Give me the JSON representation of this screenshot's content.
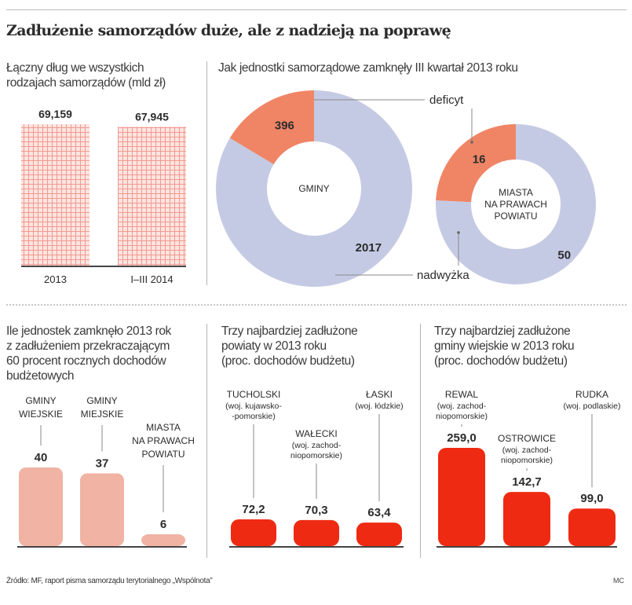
{
  "title": "Zadłużenie samorządów duże, ale z nadzieją na poprawę",
  "footer": {
    "source": "Źródło: MF, raport pisma samorządu terytorialnego „Wspólnota”",
    "author": "MC"
  },
  "colors": {
    "deficit": "#f08566",
    "surplus": "#c5cae4",
    "pink_bar": "#f0b3a4",
    "red_bar": "#ee2a12",
    "grid_bar": "#f3a8a0",
    "text_dark": "#2b2b2b"
  },
  "chart_data": [
    {
      "type": "bar",
      "title": "Łączny dług we wszystkich rodzajach samorządów (mld zł)",
      "title_lines": [
        "Łączny dług we wszystkich",
        "rodzajach samorządów (mld zł)"
      ],
      "categories": [
        "2013",
        "I–III 2014"
      ],
      "values": [
        69.159,
        67.945
      ],
      "value_labels": [
        "69,159",
        "67,945"
      ],
      "xlabel": "",
      "ylabel": "mld zł",
      "ylim": [
        0,
        70
      ]
    },
    {
      "type": "pie",
      "title": "Jak jednostki samorządowe zamknęły III kwartał 2013 roku",
      "legend_labels": {
        "deficit": "deficyt",
        "surplus": "nadwyżka"
      },
      "donuts": [
        {
          "center_label": [
            "GMINY"
          ],
          "slices": [
            {
              "name": "deficyt",
              "value": 396
            },
            {
              "name": "nadwyżka",
              "value": 2017
            }
          ]
        },
        {
          "center_label": [
            "MIASTA",
            "NA PRAWACH",
            "POWIATU"
          ],
          "slices": [
            {
              "name": "deficyt",
              "value": 16
            },
            {
              "name": "nadwyżka",
              "value": 50
            }
          ]
        }
      ]
    },
    {
      "type": "bar",
      "title": "Ile jednostek zamknęło 2013 rok z zadłużeniem przekraczającym 60 procent rocznych dochodów budżetowych",
      "title_lines": [
        "Ile jednostek zamknęło 2013 rok",
        "z zadłużeniem przekraczającym",
        "60 procent rocznych dochodów",
        "budżetowych"
      ],
      "categories": [
        [
          "GMINY",
          "WIEJSKIE"
        ],
        [
          "GMINY",
          "MIEJSKIE"
        ],
        [
          "MIASTA",
          "NA PRAWACH",
          "POWIATU"
        ]
      ],
      "values": [
        40,
        37,
        6
      ],
      "value_labels": [
        "40",
        "37",
        "6"
      ],
      "ylim": [
        0,
        40
      ]
    },
    {
      "type": "bar",
      "title": "Trzy najbardziej zadłużone powiaty w 2013 roku (proc. dochodów budżetu)",
      "title_lines": [
        "Trzy najbardziej zadłużone",
        "powiaty w 2013 roku",
        "(proc. dochodów budżetu)"
      ],
      "categories": [
        {
          "name": "TUCHOLSKI",
          "region": [
            "(woj. kujawsko-",
            "-pomorskie)"
          ]
        },
        {
          "name": "WAŁECKI",
          "region": [
            "(woj. zachod-",
            "niopomorskie)"
          ]
        },
        {
          "name": "ŁASKI",
          "region": [
            "(woj. łódzkie)"
          ]
        }
      ],
      "values": [
        72.2,
        70.3,
        63.4
      ],
      "value_labels": [
        "72,2",
        "70,3",
        "63,4"
      ],
      "ylabel": "proc. dochodów budżetu"
    },
    {
      "type": "bar",
      "title": "Trzy najbardziej zadłużone gminy wiejskie w 2013 roku (proc. dochodów budżetu)",
      "title_lines": [
        "Trzy najbardziej zadłużone",
        "gminy wiejskie w 2013 roku",
        "(proc. dochodów budżetu)"
      ],
      "categories": [
        {
          "name": "REWAL",
          "region": [
            "(woj. zachod-",
            "niopomorskie)"
          ]
        },
        {
          "name": "OSTROWICE",
          "region": [
            "(woj. zachod-",
            "niopomorskie)"
          ]
        },
        {
          "name": "RUDKA",
          "region": [
            "(woj. podlaskie)"
          ]
        }
      ],
      "values": [
        259.0,
        142.7,
        99.0
      ],
      "value_labels": [
        "259,0",
        "142,7",
        "99,0"
      ],
      "ylabel": "proc. dochodów budżetu",
      "ylim": [
        0,
        259
      ]
    }
  ]
}
